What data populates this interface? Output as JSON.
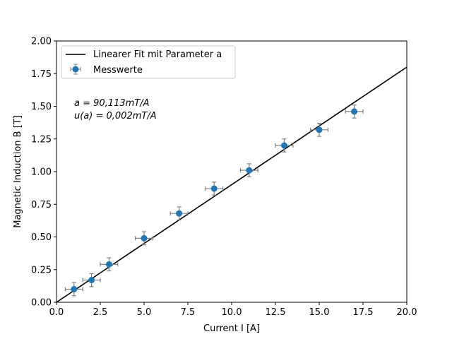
{
  "chart_data": {
    "type": "scatter",
    "title": "",
    "xlabel": "Current I [A]",
    "ylabel": "Magnetic Induction B [T]",
    "xlim": [
      0,
      20
    ],
    "ylim": [
      0,
      2
    ],
    "xticks": [
      "0.0",
      "2.5",
      "5.0",
      "7.5",
      "10.0",
      "12.5",
      "15.0",
      "17.5",
      "20.0"
    ],
    "yticks": [
      "0.00",
      "0.25",
      "0.50",
      "0.75",
      "1.00",
      "1.25",
      "1.50",
      "1.75",
      "2.00"
    ],
    "grid": false,
    "legend_position": "upper-left",
    "series": [
      {
        "name": "Linearer Fit mit Parameter a",
        "kind": "line",
        "color": "#000000",
        "x": [
          0,
          20
        ],
        "y": [
          0,
          1.8
        ]
      },
      {
        "name": "Messwerte",
        "kind": "errorbar",
        "color": "#1f77b4",
        "errorbar_color": "#808080",
        "x": [
          1,
          2,
          3,
          5,
          7,
          9,
          11,
          13,
          15,
          17
        ],
        "y": [
          0.1,
          0.17,
          0.29,
          0.49,
          0.68,
          0.87,
          1.01,
          1.2,
          1.32,
          1.46
        ],
        "xerr": 0.5,
        "yerr": 0.05
      }
    ],
    "annotations": [
      "a = 90,113mT/A",
      "u(a) = 0,002mT/A"
    ]
  }
}
